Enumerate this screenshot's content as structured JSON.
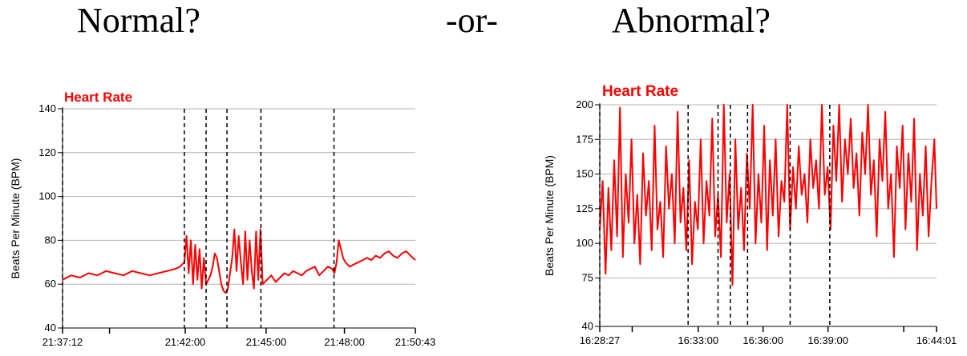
{
  "headings": {
    "normal": "Normal?",
    "or": "-or-",
    "abnormal": "Abnormal?"
  },
  "colors": {
    "series": "#ff0000",
    "grid": "#b4b4b4",
    "markers": "#000000"
  },
  "chart_data": [
    {
      "type": "line",
      "title": "Heart Rate",
      "ylabel": "Beats Per Minute (BPM)",
      "ylim": [
        40,
        140
      ],
      "y_ticks": [
        40,
        60,
        80,
        100,
        120,
        140
      ],
      "x_tick_labels": [
        {
          "t": 0,
          "label": "21:37:12"
        },
        {
          "t": 282,
          "label": "21:42:00"
        },
        {
          "t": 468,
          "label": "21:45:00"
        },
        {
          "t": 648,
          "label": "21:48:00"
        },
        {
          "t": 811,
          "label": "21:50:43"
        }
      ],
      "x_minor_ticks": [
        108
      ],
      "xlim": [
        0,
        811
      ],
      "event_markers": [
        0,
        280,
        330,
        378,
        456,
        624
      ],
      "grid": true,
      "series": [
        {
          "x": [
            0,
            20,
            40,
            60,
            80,
            100,
            120,
            140,
            160,
            180,
            200,
            220,
            240,
            260,
            270,
            280,
            285,
            290,
            295,
            300,
            305,
            310,
            315,
            320,
            325,
            330,
            335,
            340,
            345,
            350,
            355,
            360,
            365,
            370,
            375,
            380,
            385,
            390,
            395,
            400,
            405,
            410,
            415,
            420,
            425,
            430,
            435,
            440,
            445,
            450,
            455,
            460,
            470,
            480,
            490,
            500,
            510,
            520,
            530,
            540,
            550,
            560,
            570,
            580,
            590,
            600,
            610,
            620,
            625,
            630,
            635,
            640,
            645,
            650,
            660,
            670,
            680,
            690,
            700,
            710,
            720,
            730,
            740,
            750,
            760,
            770,
            780,
            790,
            800,
            811
          ],
          "values": [
            62,
            64,
            63,
            65,
            64,
            66,
            65,
            64,
            66,
            65,
            64,
            65,
            66,
            67,
            68,
            70,
            82,
            65,
            80,
            60,
            78,
            62,
            76,
            58,
            72,
            60,
            62,
            64,
            68,
            74,
            72,
            66,
            60,
            57,
            56,
            58,
            65,
            72,
            85,
            66,
            82,
            70,
            60,
            84,
            62,
            80,
            66,
            58,
            84,
            62,
            85,
            60,
            62,
            64,
            61,
            63,
            65,
            64,
            66,
            65,
            64,
            66,
            67,
            68,
            64,
            66,
            68,
            67,
            65,
            70,
            80,
            76,
            72,
            70,
            68,
            69,
            70,
            71,
            72,
            71,
            73,
            72,
            74,
            75,
            73,
            72,
            74,
            75,
            73,
            71
          ]
        }
      ]
    },
    {
      "type": "line",
      "title": "Heart Rate",
      "ylabel": "Beats Per Minute (BPM)",
      "ylim": [
        40,
        200
      ],
      "y_ticks": [
        40,
        75,
        100,
        125,
        150,
        175,
        200
      ],
      "x_tick_labels": [
        {
          "t": 0,
          "label": "16:28:27"
        },
        {
          "t": 273,
          "label": "16:33:00"
        },
        {
          "t": 453,
          "label": "16:36:00"
        },
        {
          "t": 633,
          "label": "16:39:00"
        },
        {
          "t": 934,
          "label": "16:44:01"
        }
      ],
      "x_minor_ticks": [
        90,
        843
      ],
      "xlim": [
        0,
        934
      ],
      "event_markers": [
        0,
        245,
        328,
        362,
        410,
        528,
        638
      ],
      "grid": true,
      "series": [
        {
          "x": [
            0,
            8,
            16,
            24,
            32,
            40,
            48,
            56,
            64,
            72,
            80,
            88,
            96,
            104,
            112,
            120,
            128,
            136,
            144,
            152,
            160,
            168,
            176,
            184,
            192,
            200,
            208,
            216,
            224,
            232,
            240,
            248,
            256,
            264,
            272,
            280,
            288,
            296,
            304,
            312,
            320,
            328,
            336,
            344,
            352,
            360,
            368,
            376,
            384,
            392,
            400,
            408,
            416,
            424,
            432,
            440,
            448,
            456,
            464,
            472,
            480,
            488,
            496,
            504,
            512,
            520,
            528,
            536,
            544,
            552,
            560,
            568,
            576,
            584,
            592,
            600,
            608,
            616,
            624,
            632,
            640,
            648,
            656,
            664,
            672,
            680,
            688,
            696,
            704,
            712,
            720,
            728,
            736,
            744,
            752,
            760,
            768,
            776,
            784,
            792,
            800,
            808,
            816,
            824,
            832,
            840,
            848,
            856,
            864,
            872,
            880,
            888,
            896,
            904,
            912,
            920,
            928,
            934
          ],
          "values": [
            110,
            145,
            78,
            140,
            95,
            160,
            105,
            198,
            90,
            150,
            115,
            175,
            100,
            135,
            85,
            165,
            120,
            145,
            95,
            185,
            110,
            130,
            90,
            170,
            125,
            150,
            100,
            195,
            115,
            140,
            95,
            160,
            85,
            130,
            110,
            175,
            100,
            145,
            120,
            190,
            105,
            135,
            90,
            200,
            115,
            150,
            70,
            175,
            110,
            140,
            95,
            165,
            125,
            200,
            100,
            150,
            115,
            185,
            95,
            160,
            120,
            175,
            105,
            145,
            130,
            200,
            110,
            155,
            125,
            170,
            135,
            150,
            115,
            175,
            140,
            160,
            125,
            200,
            135,
            155,
            110,
            185,
            145,
            200,
            130,
            175,
            150,
            190,
            140,
            165,
            120,
            180,
            150,
            200,
            135,
            160,
            105,
            175,
            145,
            195,
            125,
            150,
            90,
            170,
            140,
            185,
            110,
            165,
            130,
            190,
            95,
            150,
            120,
            170,
            105,
            145,
            175,
            125
          ]
        }
      ]
    }
  ]
}
